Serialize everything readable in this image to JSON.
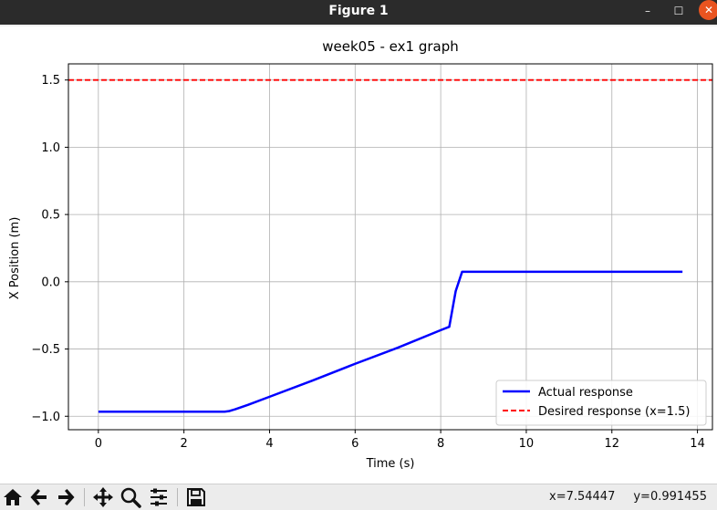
{
  "window": {
    "title": "Figure 1",
    "controls": {
      "minimize_icon": "minimize-icon",
      "maximize_icon": "maximize-icon",
      "close_icon": "close-icon"
    },
    "close_color": "#e95420"
  },
  "chart_data": {
    "type": "line",
    "title": "week05 - ex1 graph",
    "xlabel": "Time (s)",
    "ylabel": "X Position (m)",
    "xlim": [
      -0.7,
      14.35
    ],
    "ylim": [
      -1.1,
      1.62
    ],
    "xticks": [
      0,
      2,
      4,
      6,
      8,
      10,
      12,
      14
    ],
    "xtick_labels": [
      "0",
      "2",
      "4",
      "6",
      "8",
      "10",
      "12",
      "14"
    ],
    "yticks": [
      -1.0,
      -0.5,
      0.0,
      0.5,
      1.0,
      1.5
    ],
    "ytick_labels": [
      "−1.0",
      "−0.5",
      "0.0",
      "0.5",
      "1.0",
      "1.5"
    ],
    "grid": true,
    "legend_position": "lower-right",
    "series": [
      {
        "name": "Actual response",
        "color": "#0000ff",
        "style": "solid",
        "x": [
          0,
          2.95,
          3.05,
          3.2,
          3.5,
          4,
          5,
          6,
          7,
          8,
          8.2,
          8.35,
          8.5,
          10,
          12,
          13.65
        ],
        "y": [
          -0.966,
          -0.966,
          -0.962,
          -0.948,
          -0.915,
          -0.855,
          -0.735,
          -0.61,
          -0.49,
          -0.36,
          -0.335,
          -0.07,
          0.074,
          0.074,
          0.074,
          0.074
        ]
      },
      {
        "name": "Desired response (x=1.5)",
        "color": "#ff0000",
        "style": "dashed",
        "x": [
          -0.7,
          14.35
        ],
        "y": [
          1.5,
          1.5
        ]
      }
    ]
  },
  "status": {
    "x_readout": "x=7.54447",
    "y_readout": "y=0.991455"
  },
  "toolbar": {
    "icons": [
      "home-icon",
      "back-icon",
      "forward-icon",
      "pan-icon",
      "zoom-icon",
      "configure-subplots-icon",
      "save-icon"
    ]
  }
}
